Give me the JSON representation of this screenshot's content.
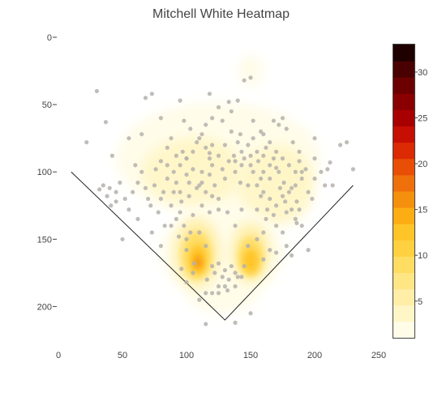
{
  "chart_data": {
    "type": "heatmap",
    "title": "Mitchell White Heatmap",
    "xlim": [
      0,
      250
    ],
    "ylim": [
      0,
      225
    ],
    "y_reversed": true,
    "x_ticks": [
      "0",
      "50",
      "100",
      "150",
      "200",
      "250"
    ],
    "y_ticks": [
      "0",
      "50",
      "100",
      "150",
      "200"
    ],
    "colorbar": {
      "range": [
        1,
        33
      ],
      "ticks": [
        "5",
        "10",
        "15",
        "20",
        "25",
        "30"
      ],
      "colors": [
        "#fffce8",
        "#fff6c8",
        "#ffeea8",
        "#ffe684",
        "#ffdd62",
        "#ffd040",
        "#ffc428",
        "#fcad14",
        "#f5900e",
        "#ef700a",
        "#e84e06",
        "#dc2a04",
        "#c60e02",
        "#a80000",
        "#8a0000",
        "#6c0000",
        "#4a0000",
        "#1e0000"
      ]
    },
    "field_lines": [
      {
        "x": [
          10,
          130,
          230
        ],
        "y": [
          100,
          210,
          110
        ]
      }
    ],
    "density_blobs": [
      {
        "x": 150,
        "y": 25,
        "rx": 10,
        "ry": 12,
        "level": 1
      },
      {
        "x": 125,
        "y": 90,
        "rx": 80,
        "ry": 42,
        "level": 1
      },
      {
        "x": 105,
        "y": 100,
        "rx": 40,
        "ry": 25,
        "level": 2
      },
      {
        "x": 170,
        "y": 110,
        "rx": 30,
        "ry": 30,
        "level": 2
      },
      {
        "x": 112,
        "y": 88,
        "rx": 18,
        "ry": 10,
        "level": 3
      },
      {
        "x": 175,
        "y": 105,
        "rx": 16,
        "ry": 18,
        "level": 3
      },
      {
        "x": 128,
        "y": 160,
        "rx": 48,
        "ry": 35,
        "level": 1
      },
      {
        "x": 128,
        "y": 190,
        "rx": 28,
        "ry": 15,
        "level": 1
      },
      {
        "x": 108,
        "y": 160,
        "rx": 18,
        "ry": 26,
        "level": 4
      },
      {
        "x": 150,
        "y": 160,
        "rx": 15,
        "ry": 22,
        "level": 4
      },
      {
        "x": 108,
        "y": 162,
        "rx": 12,
        "ry": 18,
        "level": 8
      },
      {
        "x": 150,
        "y": 163,
        "rx": 10,
        "ry": 15,
        "level": 8
      },
      {
        "x": 109,
        "y": 165,
        "rx": 7,
        "ry": 11,
        "level": 13
      },
      {
        "x": 150,
        "y": 166,
        "rx": 6,
        "ry": 9,
        "level": 12
      },
      {
        "x": 109,
        "y": 167,
        "rx": 3,
        "ry": 5,
        "level": 16
      }
    ],
    "points": [
      [
        30,
        40
      ],
      [
        37,
        63
      ],
      [
        22,
        78
      ],
      [
        42,
        88
      ],
      [
        55,
        75
      ],
      [
        65,
        72
      ],
      [
        68,
        45
      ],
      [
        73,
        42
      ],
      [
        80,
        60
      ],
      [
        95,
        47
      ],
      [
        88,
        75
      ],
      [
        97,
        85
      ],
      [
        100,
        90
      ],
      [
        110,
        75
      ],
      [
        115,
        82
      ],
      [
        118,
        90
      ],
      [
        120,
        95
      ],
      [
        125,
        88
      ],
      [
        130,
        80
      ],
      [
        135,
        70
      ],
      [
        140,
        78
      ],
      [
        145,
        90
      ],
      [
        150,
        95
      ],
      [
        155,
        85
      ],
      [
        160,
        72
      ],
      [
        165,
        78
      ],
      [
        170,
        85
      ],
      [
        175,
        90
      ],
      [
        180,
        95
      ],
      [
        185,
        100
      ],
      [
        168,
        62
      ],
      [
        172,
        65
      ],
      [
        175,
        60
      ],
      [
        150,
        30
      ],
      [
        145,
        32
      ],
      [
        118,
        42
      ],
      [
        125,
        52
      ],
      [
        140,
        47
      ],
      [
        135,
        55
      ],
      [
        98,
        62
      ],
      [
        103,
        68
      ],
      [
        85,
        95
      ],
      [
        90,
        100
      ],
      [
        92,
        108
      ],
      [
        95,
        115
      ],
      [
        100,
        102
      ],
      [
        105,
        98
      ],
      [
        112,
        100
      ],
      [
        118,
        102
      ],
      [
        122,
        110
      ],
      [
        130,
        105
      ],
      [
        138,
        100
      ],
      [
        142,
        108
      ],
      [
        148,
        110
      ],
      [
        152,
        100
      ],
      [
        158,
        105
      ],
      [
        160,
        115
      ],
      [
        165,
        120
      ],
      [
        170,
        125
      ],
      [
        175,
        118
      ],
      [
        180,
        115
      ],
      [
        185,
        110
      ],
      [
        190,
        105
      ],
      [
        195,
        115
      ],
      [
        200,
        105
      ],
      [
        205,
        100
      ],
      [
        212,
        93
      ],
      [
        208,
        110
      ],
      [
        220,
        80
      ],
      [
        230,
        98
      ],
      [
        225,
        78
      ],
      [
        200,
        75
      ],
      [
        190,
        100
      ],
      [
        178,
        130
      ],
      [
        170,
        140
      ],
      [
        162,
        135
      ],
      [
        155,
        128
      ],
      [
        143,
        128
      ],
      [
        138,
        140
      ],
      [
        132,
        130
      ],
      [
        125,
        128
      ],
      [
        118,
        130
      ],
      [
        112,
        125
      ],
      [
        105,
        132
      ],
      [
        98,
        140
      ],
      [
        92,
        135
      ],
      [
        88,
        125
      ],
      [
        82,
        115
      ],
      [
        75,
        110
      ],
      [
        70,
        120
      ],
      [
        62,
        135
      ],
      [
        55,
        128
      ],
      [
        50,
        150
      ],
      [
        45,
        115
      ],
      [
        40,
        112
      ],
      [
        35,
        110
      ],
      [
        32,
        113
      ],
      [
        38,
        118
      ],
      [
        48,
        108
      ],
      [
        60,
        95
      ],
      [
        68,
        112
      ],
      [
        72,
        125
      ],
      [
        78,
        130
      ],
      [
        83,
        140
      ],
      [
        80,
        155
      ],
      [
        100,
        150
      ],
      [
        103,
        145
      ],
      [
        110,
        145
      ],
      [
        115,
        155
      ],
      [
        120,
        170
      ],
      [
        125,
        168
      ],
      [
        130,
        173
      ],
      [
        135,
        170
      ],
      [
        140,
        178
      ],
      [
        130,
        185
      ],
      [
        125,
        185
      ],
      [
        120,
        190
      ],
      [
        115,
        190
      ],
      [
        110,
        195
      ],
      [
        125,
        190
      ],
      [
        132,
        188
      ],
      [
        138,
        185
      ],
      [
        143,
        178
      ],
      [
        150,
        205
      ],
      [
        115,
        213
      ],
      [
        138,
        212
      ],
      [
        100,
        182
      ],
      [
        105,
        175
      ],
      [
        96,
        172
      ],
      [
        160,
        165
      ],
      [
        165,
        158
      ],
      [
        170,
        160
      ],
      [
        175,
        145
      ],
      [
        178,
        155
      ],
      [
        182,
        162
      ],
      [
        195,
        158
      ],
      [
        185,
        135
      ],
      [
        188,
        128
      ],
      [
        198,
        120
      ],
      [
        105,
        85
      ],
      [
        108,
        78
      ],
      [
        112,
        72
      ],
      [
        115,
        65
      ],
      [
        102,
        108
      ],
      [
        96,
        122
      ],
      [
        95,
        130
      ],
      [
        138,
        92
      ],
      [
        143,
        95
      ],
      [
        148,
        80
      ],
      [
        152,
        75
      ],
      [
        162,
        82
      ],
      [
        168,
        90
      ],
      [
        172,
        100
      ],
      [
        176,
        108
      ],
      [
        182,
        112
      ],
      [
        186,
        122
      ],
      [
        160,
        100
      ],
      [
        165,
        105
      ],
      [
        120,
        60
      ],
      [
        128,
        62
      ],
      [
        133,
        48
      ],
      [
        142,
        72
      ],
      [
        152,
        62
      ],
      [
        158,
        70
      ],
      [
        178,
        68
      ],
      [
        183,
        78
      ],
      [
        188,
        85
      ],
      [
        102,
        118
      ],
      [
        108,
        112
      ],
      [
        112,
        108
      ],
      [
        92,
        88
      ],
      [
        85,
        82
      ],
      [
        80,
        92
      ],
      [
        76,
        98
      ],
      [
        65,
        100
      ],
      [
        62,
        108
      ],
      [
        58,
        115
      ],
      [
        52,
        120
      ],
      [
        45,
        122
      ],
      [
        41,
        125
      ],
      [
        88,
        140
      ],
      [
        94,
        148
      ],
      [
        100,
        158
      ],
      [
        106,
        168
      ],
      [
        116,
        180
      ],
      [
        122,
        175
      ],
      [
        128,
        178
      ],
      [
        133,
        180
      ],
      [
        138,
        175
      ],
      [
        145,
        170
      ],
      [
        148,
        155
      ],
      [
        155,
        150
      ],
      [
        160,
        145
      ],
      [
        110,
        110
      ],
      [
        115,
        115
      ],
      [
        120,
        118
      ],
      [
        125,
        120
      ],
      [
        155,
        110
      ],
      [
        158,
        118
      ],
      [
        163,
        128
      ],
      [
        168,
        132
      ],
      [
        120,
        80
      ],
      [
        118,
        86
      ],
      [
        128,
        98
      ],
      [
        133,
        92
      ],
      [
        137,
        88
      ],
      [
        143,
        85
      ],
      [
        150,
        88
      ],
      [
        156,
        92
      ],
      [
        160,
        88
      ],
      [
        165,
        95
      ],
      [
        170,
        97
      ],
      [
        173,
        112
      ],
      [
        177,
        122
      ],
      [
        182,
        128
      ],
      [
        186,
        138
      ],
      [
        190,
        140
      ],
      [
        210,
        98
      ],
      [
        214,
        110
      ],
      [
        200,
        90
      ],
      [
        193,
        98
      ],
      [
        188,
        92
      ],
      [
        100,
        90
      ],
      [
        95,
        95
      ],
      [
        90,
        115
      ],
      [
        85,
        105
      ],
      [
        80,
        120
      ],
      [
        73,
        145
      ]
    ]
  }
}
